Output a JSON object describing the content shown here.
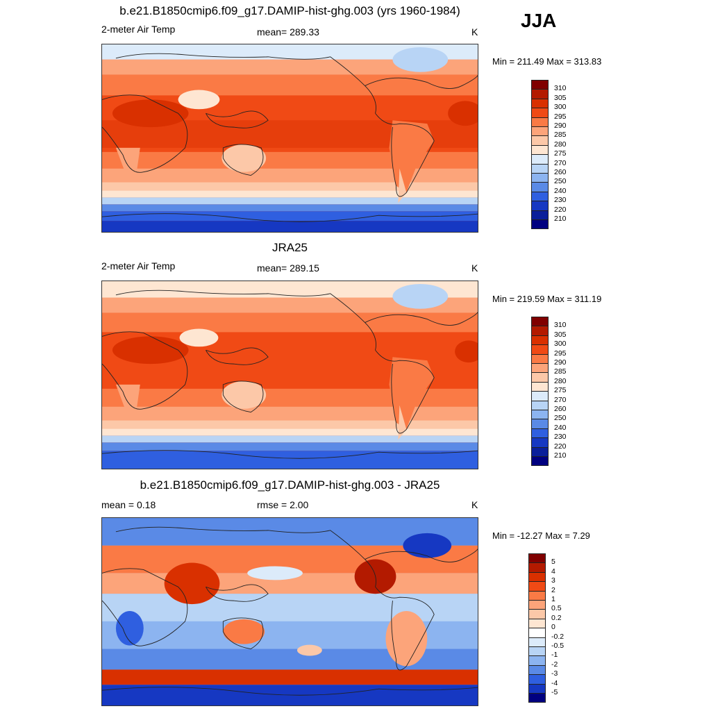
{
  "season": "JJA",
  "panels": [
    {
      "title": "b.e21.B1850cmip6.f09_g17.DAMIP-hist-ghg.003 (yrs 1960-1984)",
      "left_label": "2-meter Air Temp",
      "center_label": "mean= 289.33",
      "units": "K",
      "minmax": "Min = 211.49 Max = 313.83",
      "map_type": "absolute",
      "colorbar": {
        "labels": [
          "310",
          "305",
          "300",
          "295",
          "290",
          "285",
          "280",
          "275",
          "270",
          "260",
          "250",
          "240",
          "230",
          "220",
          "210"
        ],
        "colors": [
          "#800000",
          "#b31a00",
          "#d93000",
          "#f04a15",
          "#fa7a45",
          "#fca47a",
          "#fcc8a8",
          "#fee6d2",
          "#dcebfa",
          "#b8d4f5",
          "#8cb4f0",
          "#5a8ae6",
          "#2f5fe0",
          "#1638c2",
          "#0a1f9a",
          "#000080"
        ]
      }
    },
    {
      "title": "JRA25",
      "left_label": "2-meter Air Temp",
      "center_label": "mean= 289.15",
      "units": "K",
      "minmax": "Min = 219.59 Max = 311.19",
      "map_type": "absolute",
      "colorbar": {
        "labels": [
          "310",
          "305",
          "300",
          "295",
          "290",
          "285",
          "280",
          "275",
          "270",
          "260",
          "250",
          "240",
          "230",
          "220",
          "210"
        ],
        "colors": [
          "#800000",
          "#b31a00",
          "#d93000",
          "#f04a15",
          "#fa7a45",
          "#fca47a",
          "#fcc8a8",
          "#fee6d2",
          "#dcebfa",
          "#b8d4f5",
          "#8cb4f0",
          "#5a8ae6",
          "#2f5fe0",
          "#1638c2",
          "#0a1f9a",
          "#000080"
        ]
      }
    },
    {
      "title": "b.e21.B1850cmip6.f09_g17.DAMIP-hist-ghg.003 - JRA25",
      "left_label": "mean =   0.18",
      "center_label": "rmse =   2.00",
      "units": "K",
      "minmax": "Min = -12.27 Max =   7.29",
      "map_type": "difference",
      "colorbar": {
        "labels": [
          "5",
          "4",
          "3",
          "2",
          "1",
          "0.5",
          "0.2",
          "0",
          "-0.2",
          "-0.5",
          "-1",
          "-2",
          "-3",
          "-4",
          "-5"
        ],
        "colors": [
          "#800000",
          "#b31a00",
          "#d93000",
          "#f04a15",
          "#fa7a45",
          "#fca47a",
          "#fcc8a8",
          "#fee6d2",
          "#ffffff",
          "#dcebfa",
          "#b8d4f5",
          "#8cb4f0",
          "#5a8ae6",
          "#2f5fe0",
          "#1638c2",
          "#000080"
        ]
      }
    }
  ]
}
